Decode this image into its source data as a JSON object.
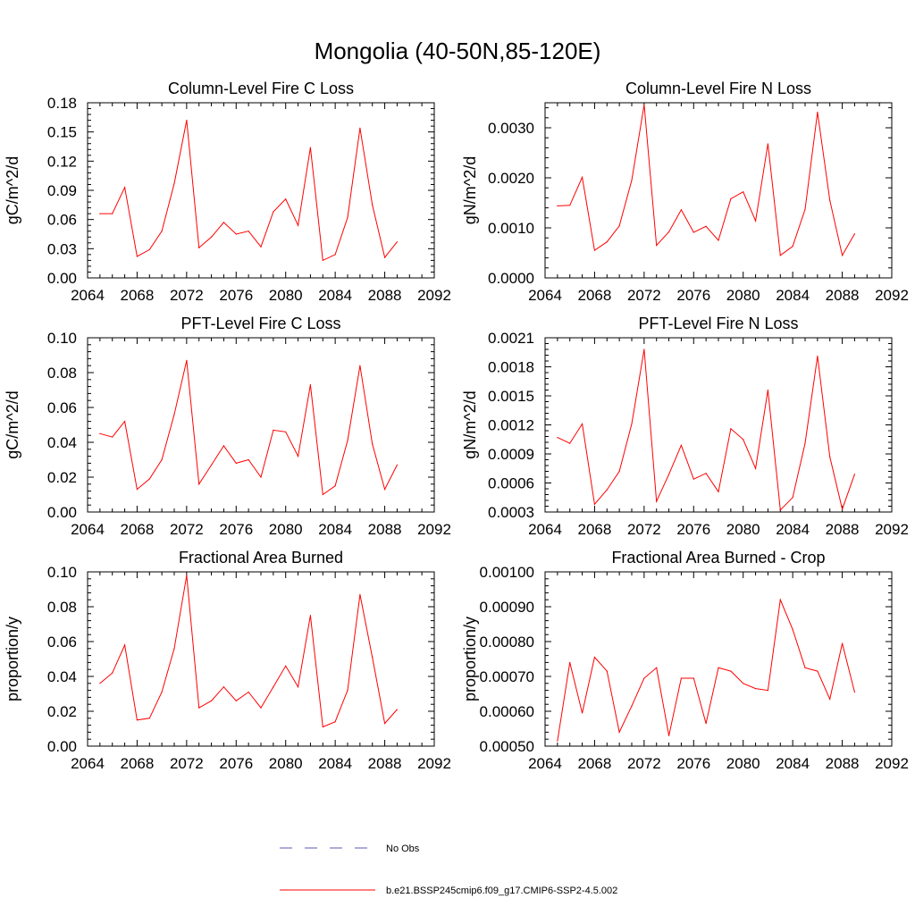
{
  "title": "Mongolia (40-50N,85-120E)",
  "legend": {
    "obs_label": "No Obs",
    "model_label": "b.e21.BSSP245cmip6.f09_g17.CMIP6-SSP2-4.5.002",
    "obs_color": "#5a5ab4",
    "model_color": "#ff0000"
  },
  "chart_data": [
    {
      "type": "line",
      "title": "Column-Level Fire C Loss",
      "ylabel": "gC/m^2/d",
      "xlim": [
        2064,
        2092
      ],
      "ylim": [
        0,
        0.18
      ],
      "xticks": [
        "2064",
        "2068",
        "2072",
        "2076",
        "2080",
        "2084",
        "2088",
        "2092"
      ],
      "yticks": [
        "0.00",
        "0.03",
        "0.06",
        "0.09",
        "0.12",
        "0.15",
        "0.18"
      ],
      "x": [
        2065,
        2066,
        2067,
        2068,
        2069,
        2070,
        2071,
        2072,
        2073,
        2074,
        2075,
        2076,
        2077,
        2078,
        2079,
        2080,
        2081,
        2082,
        2083,
        2084,
        2085,
        2086,
        2087,
        2088,
        2089
      ],
      "series": [
        {
          "values": [
            0.066,
            0.066,
            0.093,
            0.022,
            0.029,
            0.048,
            0.097,
            0.162,
            0.031,
            0.042,
            0.057,
            0.045,
            0.048,
            0.032,
            0.068,
            0.081,
            0.054,
            0.134,
            0.018,
            0.024,
            0.062,
            0.154,
            0.075,
            0.021,
            0.037
          ]
        }
      ]
    },
    {
      "type": "line",
      "title": "Column-Level Fire N Loss",
      "ylabel": "gN/m^2/d",
      "xlim": [
        2064,
        2092
      ],
      "ylim": [
        0,
        0.0035
      ],
      "xticks": [
        "2064",
        "2068",
        "2072",
        "2076",
        "2080",
        "2084",
        "2088",
        "2092"
      ],
      "yticks": [
        "0.0000",
        "0.0010",
        "0.0020",
        "0.0030"
      ],
      "ytick_values": [
        0,
        0.001,
        0.002,
        0.003
      ],
      "x": [
        2065,
        2066,
        2067,
        2068,
        2069,
        2070,
        2071,
        2072,
        2073,
        2074,
        2075,
        2076,
        2077,
        2078,
        2079,
        2080,
        2081,
        2082,
        2083,
        2084,
        2085,
        2086,
        2087,
        2088,
        2089
      ],
      "series": [
        {
          "values": [
            0.00144,
            0.00145,
            0.00201,
            0.00055,
            0.00072,
            0.00104,
            0.00195,
            0.00346,
            0.00065,
            0.00092,
            0.00136,
            0.00091,
            0.00103,
            0.00075,
            0.00158,
            0.00172,
            0.00114,
            0.00268,
            0.00045,
            0.00063,
            0.00137,
            0.00331,
            0.00155,
            0.00045,
            0.00088
          ]
        }
      ]
    },
    {
      "type": "line",
      "title": "PFT-Level Fire C Loss",
      "ylabel": "gC/m^2/d",
      "xlim": [
        2064,
        2092
      ],
      "ylim": [
        0,
        0.1
      ],
      "xticks": [
        "2064",
        "2068",
        "2072",
        "2076",
        "2080",
        "2084",
        "2088",
        "2092"
      ],
      "yticks": [
        "0.00",
        "0.02",
        "0.04",
        "0.06",
        "0.08",
        "0.10"
      ],
      "x": [
        2065,
        2066,
        2067,
        2068,
        2069,
        2070,
        2071,
        2072,
        2073,
        2074,
        2075,
        2076,
        2077,
        2078,
        2079,
        2080,
        2081,
        2082,
        2083,
        2084,
        2085,
        2086,
        2087,
        2088,
        2089
      ],
      "series": [
        {
          "values": [
            0.045,
            0.043,
            0.052,
            0.013,
            0.019,
            0.03,
            0.056,
            0.087,
            0.016,
            0.027,
            0.038,
            0.028,
            0.03,
            0.02,
            0.047,
            0.046,
            0.032,
            0.073,
            0.01,
            0.015,
            0.041,
            0.084,
            0.039,
            0.013,
            0.027
          ]
        }
      ]
    },
    {
      "type": "line",
      "title": "PFT-Level Fire N Loss",
      "ylabel": "gN/m^2/d",
      "xlim": [
        2064,
        2092
      ],
      "ylim": [
        0.0003,
        0.0021
      ],
      "xticks": [
        "2064",
        "2068",
        "2072",
        "2076",
        "2080",
        "2084",
        "2088",
        "2092"
      ],
      "yticks": [
        "0.0003",
        "0.0006",
        "0.0009",
        "0.0012",
        "0.0015",
        "0.0018",
        "0.0021"
      ],
      "x": [
        2065,
        2066,
        2067,
        2068,
        2069,
        2070,
        2071,
        2072,
        2073,
        2074,
        2075,
        2076,
        2077,
        2078,
        2079,
        2080,
        2081,
        2082,
        2083,
        2084,
        2085,
        2086,
        2087,
        2088,
        2089
      ],
      "series": [
        {
          "values": [
            0.00107,
            0.00101,
            0.00121,
            0.00038,
            0.00053,
            0.00072,
            0.00121,
            0.00198,
            0.00041,
            0.00069,
            0.00099,
            0.00064,
            0.0007,
            0.00051,
            0.00116,
            0.00105,
            0.00075,
            0.00156,
            0.00032,
            0.00045,
            0.00101,
            0.00191,
            0.00087,
            0.00033,
            0.00069
          ]
        }
      ]
    },
    {
      "type": "line",
      "title": "Fractional Area Burned",
      "ylabel": "proportion/y",
      "xlim": [
        2064,
        2092
      ],
      "ylim": [
        0,
        0.1
      ],
      "xticks": [
        "2064",
        "2068",
        "2072",
        "2076",
        "2080",
        "2084",
        "2088",
        "2092"
      ],
      "yticks": [
        "0.00",
        "0.02",
        "0.04",
        "0.06",
        "0.08",
        "0.10"
      ],
      "x": [
        2065,
        2066,
        2067,
        2068,
        2069,
        2070,
        2071,
        2072,
        2073,
        2074,
        2075,
        2076,
        2077,
        2078,
        2079,
        2080,
        2081,
        2082,
        2083,
        2084,
        2085,
        2086,
        2087,
        2088,
        2089
      ],
      "series": [
        {
          "values": [
            0.036,
            0.042,
            0.058,
            0.015,
            0.016,
            0.031,
            0.056,
            0.098,
            0.022,
            0.026,
            0.034,
            0.026,
            0.031,
            0.022,
            0.034,
            0.046,
            0.034,
            0.075,
            0.011,
            0.014,
            0.032,
            0.087,
            0.051,
            0.013,
            0.021
          ]
        }
      ]
    },
    {
      "type": "line",
      "title": "Fractional Area Burned - Crop",
      "ylabel": "proportion/y",
      "xlim": [
        2064,
        2092
      ],
      "ylim": [
        0.0005,
        0.001
      ],
      "xticks": [
        "2064",
        "2068",
        "2072",
        "2076",
        "2080",
        "2084",
        "2088",
        "2092"
      ],
      "yticks": [
        "0.00050",
        "0.00060",
        "0.00070",
        "0.00080",
        "0.00090",
        "0.00100"
      ],
      "x": [
        2065,
        2066,
        2067,
        2068,
        2069,
        2070,
        2071,
        2072,
        2073,
        2074,
        2075,
        2076,
        2077,
        2078,
        2079,
        2080,
        2081,
        2082,
        2083,
        2084,
        2085,
        2086,
        2087,
        2088,
        2089
      ],
      "series": [
        {
          "values": [
            0.000515,
            0.00074,
            0.000595,
            0.000755,
            0.000715,
            0.00054,
            0.000615,
            0.000695,
            0.000725,
            0.00053,
            0.000695,
            0.000695,
            0.000565,
            0.000725,
            0.000715,
            0.00068,
            0.000665,
            0.00066,
            0.00092,
            0.000835,
            0.000725,
            0.000715,
            0.000635,
            0.000795,
            0.000655
          ]
        }
      ]
    }
  ]
}
